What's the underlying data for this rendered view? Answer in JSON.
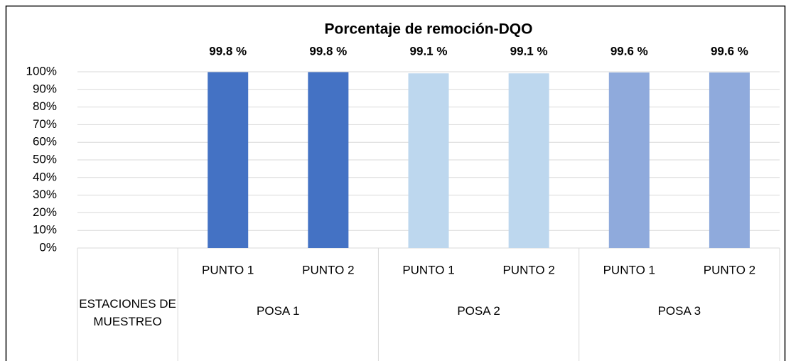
{
  "chart_data": {
    "type": "bar",
    "title": "Porcentaje de remoción-DQO",
    "categories": [
      null,
      "PUNTO 1",
      "PUNTO 2",
      "PUNTO 1",
      "PUNTO 2",
      "PUNTO 1",
      "PUNTO 2"
    ],
    "groups": [
      {
        "label": "ESTACIONES DE MUESTREO",
        "span": 1
      },
      {
        "label": "POSA 1",
        "span": 2
      },
      {
        "label": "POSA 2",
        "span": 2
      },
      {
        "label": "POSA 3",
        "span": 2
      }
    ],
    "values": [
      null,
      99.8,
      99.8,
      99.1,
      99.1,
      99.6,
      99.6
    ],
    "value_labels": [
      null,
      "99.8 %",
      "99.8 %",
      "99.1 %",
      "99.1 %",
      "99.6 %",
      "99.6 %"
    ],
    "colors": [
      null,
      "#4472c4",
      "#4472c4",
      "#bdd7ee",
      "#bdd7ee",
      "#8faadc",
      "#8faadc"
    ],
    "ylim": [
      0,
      100
    ],
    "yticks": [
      {
        "value": 0,
        "label": "0%"
      },
      {
        "value": 10,
        "label": "10%"
      },
      {
        "value": 20,
        "label": "20%"
      },
      {
        "value": 30,
        "label": "30%"
      },
      {
        "value": 40,
        "label": "40%"
      },
      {
        "value": 50,
        "label": "50%"
      },
      {
        "value": 60,
        "label": "60%"
      },
      {
        "value": 70,
        "label": "70%"
      },
      {
        "value": 80,
        "label": "80%"
      },
      {
        "value": 90,
        "label": "90%"
      },
      {
        "value": 100,
        "label": "100%"
      }
    ],
    "grid": true
  }
}
